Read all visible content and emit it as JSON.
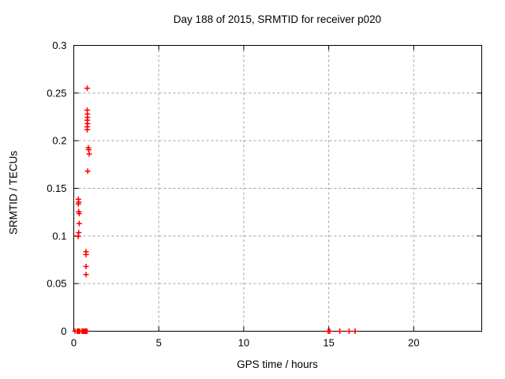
{
  "window": {
    "background": "#ffffff"
  },
  "colors": {
    "marker": "#ff0000",
    "grid": "#a0a0a0",
    "axis": "#000000",
    "text": "#000000"
  },
  "chart_data": {
    "type": "scatter",
    "title": "Day 188 of 2015, SRMTID for receiver p020",
    "xlabel": "GPS time / hours",
    "ylabel": "SRMTID / TECUs",
    "xlim": [
      0,
      24
    ],
    "ylim": [
      0,
      0.3
    ],
    "x_ticks": [
      0,
      5,
      10,
      15,
      20
    ],
    "x_tick_labels": [
      "0",
      "5",
      "10",
      "15",
      "20"
    ],
    "y_ticks": [
      0,
      0.05,
      0.1,
      0.15,
      0.2,
      0.25,
      0.3
    ],
    "y_tick_labels": [
      "0",
      "0.05",
      "0.1",
      "0.15",
      "0.2",
      "0.25",
      "0.3"
    ],
    "grid": true,
    "legend_position": "none",
    "marker": "plus",
    "series": [
      {
        "name": "SRMTID",
        "color": "#ff0000",
        "points": [
          [
            0.79,
            0.255
          ],
          [
            0.79,
            0.232
          ],
          [
            0.8,
            0.228
          ],
          [
            0.81,
            0.2245
          ],
          [
            0.79,
            0.2215
          ],
          [
            0.81,
            0.218
          ],
          [
            0.79,
            0.2145
          ],
          [
            0.79,
            0.2115
          ],
          [
            0.86,
            0.1925
          ],
          [
            0.88,
            0.1905
          ],
          [
            0.91,
            0.186
          ],
          [
            0.82,
            0.168
          ],
          [
            0.27,
            0.1385
          ],
          [
            0.29,
            0.1355
          ],
          [
            0.27,
            0.1335
          ],
          [
            0.29,
            0.1255
          ],
          [
            0.32,
            0.1235
          ],
          [
            0.32,
            0.113
          ],
          [
            0.29,
            0.1035
          ],
          [
            0.26,
            0.0995
          ],
          [
            0.72,
            0.0835
          ],
          [
            0.72,
            0.0805
          ],
          [
            0.72,
            0.068
          ],
          [
            0.72,
            0.0595
          ],
          [
            0.07,
            0
          ],
          [
            0.2,
            0
          ],
          [
            0.23,
            0
          ],
          [
            0.26,
            0
          ],
          [
            0.29,
            0
          ],
          [
            0.32,
            0
          ],
          [
            0.35,
            0
          ],
          [
            0.48,
            0
          ],
          [
            0.51,
            0
          ],
          [
            0.54,
            0
          ],
          [
            0.57,
            0
          ],
          [
            0.6,
            0
          ],
          [
            0.63,
            0
          ],
          [
            0.66,
            0
          ],
          [
            0.69,
            0
          ],
          [
            0.72,
            0
          ],
          [
            0.75,
            0
          ],
          [
            0.78,
            0
          ],
          [
            14.97,
            0
          ],
          [
            15.06,
            0
          ],
          [
            15.65,
            0
          ],
          [
            16.2,
            0
          ],
          [
            16.55,
            0
          ]
        ]
      }
    ]
  }
}
